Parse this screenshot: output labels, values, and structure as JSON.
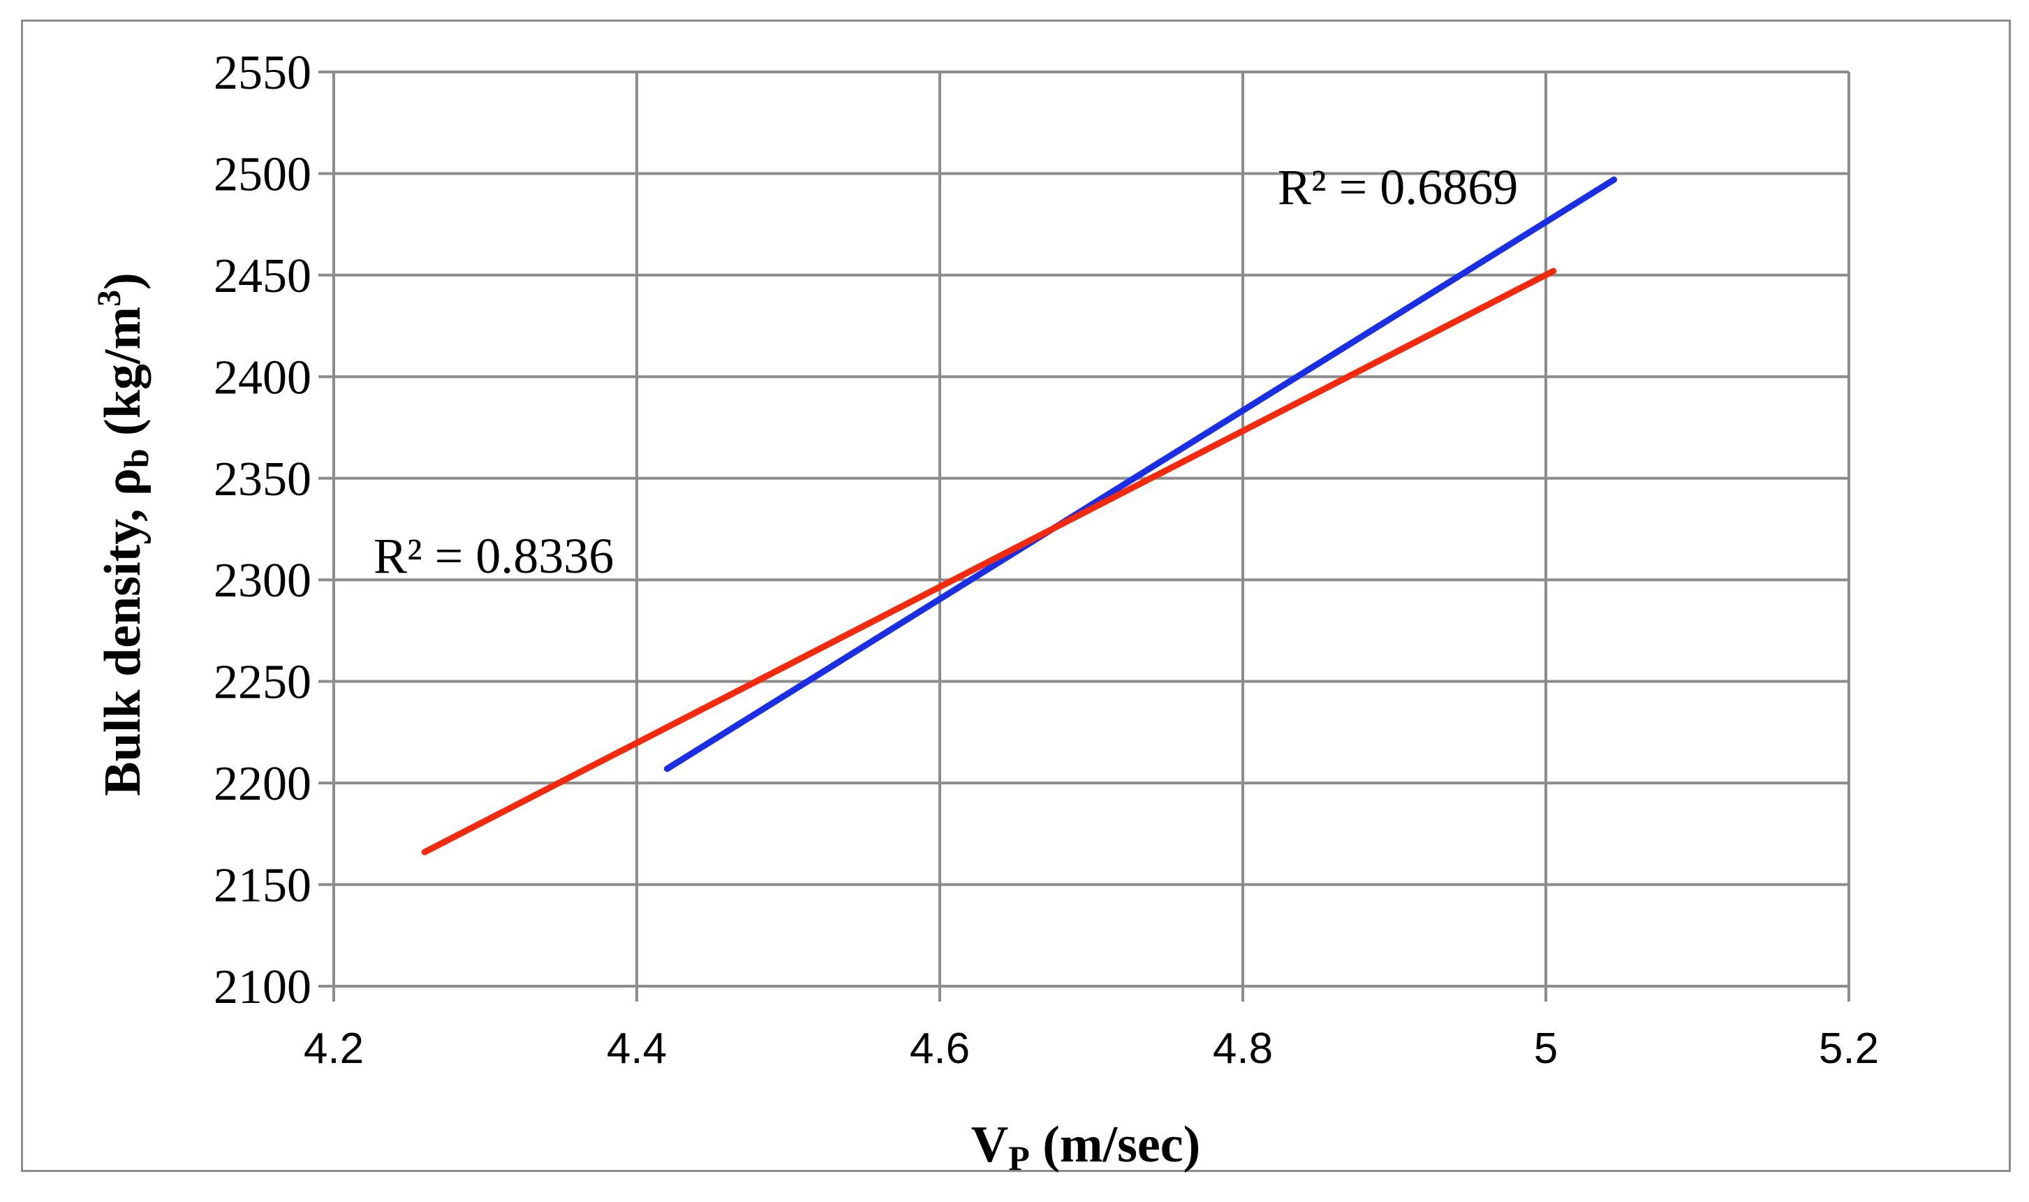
{
  "chart_data": {
    "type": "line",
    "title": "",
    "xlabel": {
      "main": "V",
      "sub": "P",
      "rest": " (m/sec)"
    },
    "ylabel": {
      "main": "Bulk density, ρ",
      "sub": "b",
      "rest": " (kg/m",
      "sup": "3",
      "end": ")"
    },
    "xlim": [
      4.2,
      5.2
    ],
    "ylim": [
      2100,
      2550
    ],
    "x_ticks": [
      "4.2",
      "4.4",
      "4.6",
      "4.8",
      "5",
      "5.2"
    ],
    "y_ticks": [
      "2100",
      "2150",
      "2200",
      "2250",
      "2300",
      "2350",
      "2400",
      "2450",
      "2500",
      "2550"
    ],
    "grid": true,
    "legend": "none",
    "series": [
      {
        "color": "#1a2ee6",
        "x": [
          4.42,
          5.045
        ],
        "y": [
          2207,
          2497
        ],
        "annotation": "R² = 0.6869"
      },
      {
        "color": "#f52a0c",
        "x": [
          4.26,
          5.005
        ],
        "y": [
          2166,
          2452
        ],
        "annotation": "R² = 0.8336"
      }
    ]
  }
}
